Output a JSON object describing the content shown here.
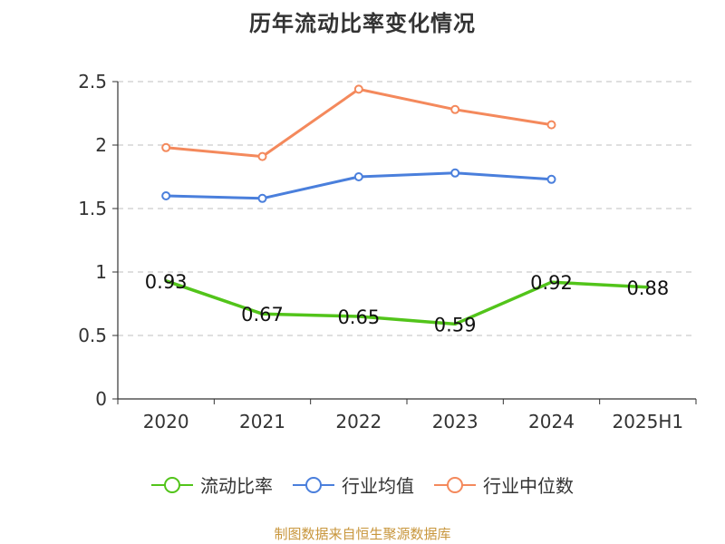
{
  "chart_data": {
    "type": "line",
    "title": "历年流动比率变化情况",
    "categories": [
      "2020",
      "2021",
      "2022",
      "2023",
      "2024",
      "2025H1"
    ],
    "ylim": [
      0,
      2.5
    ],
    "yticks": [
      "0",
      "0.5",
      "1",
      "1.5",
      "2",
      "2.5"
    ],
    "grid": true,
    "legend_position": "bottom",
    "series": [
      {
        "name": "流动比率",
        "color": "#52c41a",
        "values": [
          0.93,
          0.67,
          0.65,
          0.59,
          0.92,
          0.88
        ],
        "labels": [
          "0.93",
          "0.67",
          "0.65",
          "0.59",
          "0.92",
          "0.88"
        ]
      },
      {
        "name": "行业均值",
        "color": "#4a7fdc",
        "values": [
          1.6,
          1.58,
          1.75,
          1.78,
          1.73,
          null
        ]
      },
      {
        "name": "行业中位数",
        "color": "#f4895c",
        "values": [
          1.98,
          1.91,
          2.44,
          2.28,
          2.16,
          null
        ]
      }
    ]
  },
  "source_note": "制图数据来自恒生聚源数据库"
}
